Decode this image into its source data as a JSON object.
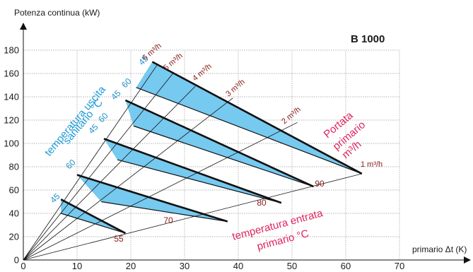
{
  "chart_data": {
    "type": "area",
    "title": "B 1000",
    "ylabel": "Potenza continua (kW)",
    "xlabel": "primario Δt (K)",
    "xlim": [
      0,
      70
    ],
    "ylim": [
      0,
      180
    ],
    "x_ticks": [
      0,
      10,
      20,
      30,
      40,
      50,
      60,
      70
    ],
    "y_ticks": [
      0,
      20,
      40,
      60,
      80,
      100,
      120,
      140,
      160,
      180
    ],
    "grid": true,
    "flow_rates_label": "Portata primario m³/h",
    "flow_lines": [
      {
        "label": "1 m³/h",
        "end": [
          63,
          74
        ]
      },
      {
        "label": "2 m³/h",
        "end": [
          51,
          118
        ]
      },
      {
        "label": "3 m³/h",
        "end": [
          39,
          139
        ]
      },
      {
        "label": "4 m³/h",
        "end": [
          32,
          149
        ]
      },
      {
        "label": "5 m³/h",
        "end": [
          28,
          161
        ]
      },
      {
        "label": "6 m³/h",
        "end": [
          25,
          168
        ]
      }
    ],
    "inlet_temperature_label": "temperatura entrata primario °C",
    "outlet_temperature_label": "temperatura uscita sanitario °C",
    "bands": [
      {
        "inlet": "55",
        "outlet_upper": "45",
        "upper": [
          [
            7,
            52
          ],
          [
            19,
            23
          ]
        ],
        "lower": [
          [
            7,
            40
          ],
          [
            19,
            23
          ]
        ]
      },
      {
        "inlet": "70",
        "outlet_upper": "60",
        "outlet_lower": "45",
        "upper": [
          [
            10,
            73
          ],
          [
            38,
            33
          ]
        ],
        "lower": [
          [
            14.5,
            50
          ],
          [
            38,
            33
          ]
        ]
      },
      {
        "inlet": "80",
        "outlet_upper": "60",
        "outlet_lower": "45",
        "upper": [
          [
            15,
            104
          ],
          [
            48,
            49
          ]
        ],
        "lower": [
          [
            17.5,
            86
          ],
          [
            48,
            49
          ]
        ]
      },
      {
        "inlet": "90",
        "outlet_upper": "60",
        "outlet_lower": "45",
        "upper": [
          [
            19,
            137
          ],
          [
            54,
            63
          ]
        ],
        "lower": [
          [
            20.5,
            115
          ],
          [
            54,
            63
          ]
        ]
      },
      {
        "inlet": "",
        "outlet_upper": "45",
        "upper": [
          [
            24,
            170
          ],
          [
            63,
            74
          ]
        ],
        "lower": [
          [
            21,
            148
          ],
          [
            63,
            74
          ]
        ]
      }
    ],
    "colors": {
      "band": "#76c9ef",
      "flow_label": "#8b1a1a",
      "annotation_red": "#e0245e",
      "annotation_blue": "#1d9ad6"
    }
  }
}
